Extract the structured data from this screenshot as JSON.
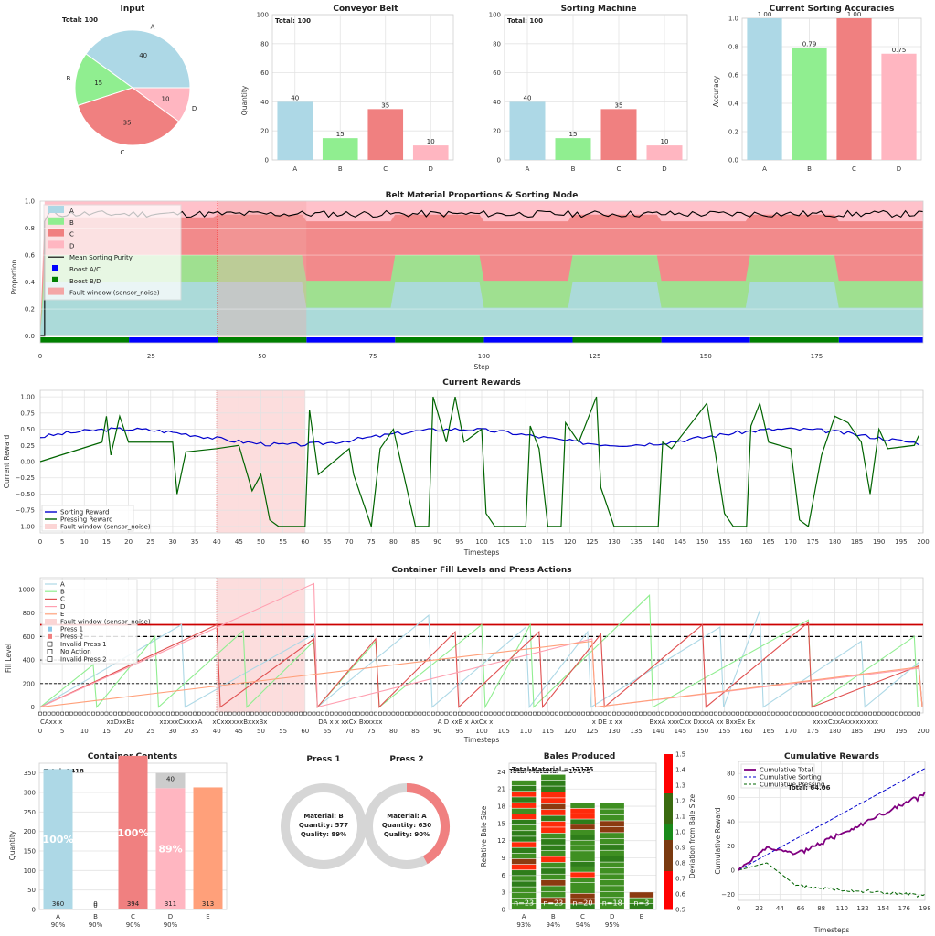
{
  "colors": {
    "A": "#add8e6",
    "B": "#90ee90",
    "C": "#f08080",
    "D": "#ffb6c1",
    "E": "#ffa07a",
    "purity": "#000000",
    "boostAC": "#0000ff",
    "boostBD": "#008000",
    "fault": "#f4a6a6",
    "sorting": "#0000cd",
    "pressing": "#006400"
  },
  "input": {
    "title": "Input",
    "total_label": "Total: 100",
    "slices": [
      {
        "name": "A",
        "value": 40
      },
      {
        "name": "B",
        "value": 15
      },
      {
        "name": "C",
        "value": 35
      },
      {
        "name": "D",
        "value": 10
      }
    ]
  },
  "conveyor": {
    "title": "Conveyor Belt",
    "total_label": "Total: 100",
    "ylabel": "Quantity",
    "categories": [
      "A",
      "B",
      "C",
      "D"
    ],
    "values": [
      40,
      15,
      35,
      10
    ],
    "ylim": [
      0,
      100
    ],
    "yticks": [
      0,
      20,
      40,
      60,
      80,
      100
    ]
  },
  "sorter": {
    "title": "Sorting Machine",
    "total_label": "Total: 100",
    "categories": [
      "A",
      "B",
      "C",
      "D"
    ],
    "values": [
      40,
      15,
      35,
      10
    ],
    "ylim": [
      0,
      100
    ],
    "yticks": [
      0,
      20,
      40,
      60,
      80,
      100
    ]
  },
  "accuracy": {
    "title": "Current Sorting Accuracies",
    "ylabel": "Accuracy",
    "categories": [
      "A",
      "B",
      "C",
      "D"
    ],
    "values": [
      1.0,
      0.79,
      1.0,
      0.75
    ],
    "value_labels": [
      "1.00",
      "0.79",
      "1.00",
      "0.75"
    ],
    "ylim": [
      0,
      1
    ],
    "yticks": [
      "0.0",
      "0.2",
      "0.4",
      "0.6",
      "0.8",
      "1.0"
    ]
  },
  "chart_data": [
    {
      "type": "pie",
      "title": "Input",
      "categories": [
        "A",
        "B",
        "C",
        "D"
      ],
      "values": [
        40,
        15,
        35,
        10
      ]
    },
    {
      "type": "bar",
      "title": "Conveyor Belt",
      "categories": [
        "A",
        "B",
        "C",
        "D"
      ],
      "values": [
        40,
        15,
        35,
        10
      ],
      "ylabel": "Quantity",
      "ylim": [
        0,
        100
      ]
    },
    {
      "type": "bar",
      "title": "Sorting Machine",
      "categories": [
        "A",
        "B",
        "C",
        "D"
      ],
      "values": [
        40,
        15,
        35,
        10
      ],
      "ylim": [
        0,
        100
      ]
    },
    {
      "type": "bar",
      "title": "Current Sorting Accuracies",
      "categories": [
        "A",
        "B",
        "C",
        "D"
      ],
      "values": [
        1.0,
        0.79,
        1.0,
        0.75
      ],
      "ylabel": "Accuracy",
      "ylim": [
        0,
        1
      ]
    },
    {
      "type": "area",
      "title": "Belt Material Proportions & Sorting Mode",
      "xlabel": "Step",
      "ylabel": "Proportion",
      "xlim": [
        0,
        199
      ],
      "ylim": [
        0,
        1
      ],
      "series": [
        {
          "name": "A",
          "values_low_high": [
            0.21,
            0.4
          ]
        },
        {
          "name": "B",
          "values_low_high": [
            0.15,
            0.2
          ]
        },
        {
          "name": "C",
          "values_low_high": [
            0.28,
            0.35
          ]
        },
        {
          "name": "D",
          "values_low_high": [
            0.1,
            0.15
          ]
        },
        {
          "name": "Mean Sorting Purity",
          "approx": 0.9
        }
      ],
      "boost_AC_steps": [
        [
          20,
          40
        ],
        [
          60,
          80
        ],
        [
          100,
          120
        ],
        [
          140,
          160
        ],
        [
          180,
          199
        ]
      ],
      "boost_BD_steps": [
        [
          0,
          20
        ],
        [
          40,
          60
        ],
        [
          80,
          100
        ],
        [
          120,
          140
        ],
        [
          160,
          180
        ]
      ],
      "fault_window": [
        40,
        60
      ]
    },
    {
      "type": "line",
      "title": "Current Rewards",
      "xlabel": "Timesteps",
      "ylabel": "Current Reward",
      "ylim": [
        -1.1,
        1.1
      ],
      "series": [
        "Sorting Reward",
        "Pressing Reward"
      ],
      "fault_window": [
        40,
        60
      ]
    },
    {
      "type": "line",
      "title": "Container Fill Levels and Press Actions",
      "xlabel": "Timesteps",
      "ylabel": "Fill Level",
      "series": [
        "A",
        "B",
        "C",
        "D",
        "E"
      ],
      "thresholds": [
        700,
        600,
        400,
        200
      ]
    },
    {
      "type": "bar",
      "title": "Container Contents",
      "total_label": "Total: 1418",
      "categories": [
        "A",
        "B",
        "C",
        "D",
        "E"
      ],
      "values": [
        360,
        0,
        394,
        311,
        313
      ],
      "fill_pct": [
        "100%",
        "",
        "100%",
        "89%",
        ""
      ],
      "accuracy": [
        "90%",
        "90%",
        "90%",
        "90%",
        ""
      ]
    },
    {
      "type": "bar",
      "title": "Bales Produced",
      "total_label": "Total Material = 17175",
      "categories": [
        "A",
        "B",
        "C",
        "D",
        "E"
      ],
      "bale_counts": [
        23,
        23,
        20,
        18,
        3
      ],
      "quality": [
        "93%",
        "94%",
        "94%",
        "95%",
        ""
      ]
    },
    {
      "type": "line",
      "title": "Cumulative Rewards",
      "xlabel": "Timesteps",
      "ylabel": "Cumulative Reward",
      "series": [
        "Cumulative Total",
        "Cumulative Sorting",
        "Cumulative Pressing"
      ],
      "final_total": 64.06
    }
  ],
  "belt": {
    "title": "Belt Material Proportions & Sorting Mode",
    "xlabel": "Step",
    "ylabel": "Proportion",
    "yticks": [
      "0.0",
      "0.2",
      "0.4",
      "0.6",
      "0.8",
      "1.0"
    ],
    "xticks": [
      "0",
      "25",
      "50",
      "75",
      "100",
      "125",
      "150",
      "175"
    ],
    "legend": [
      "A",
      "B",
      "C",
      "D",
      "Mean Sorting Purity",
      "Boost A/C",
      "Boost B/D",
      "Fault window (sensor_noise)"
    ]
  },
  "rewards": {
    "title": "Current Rewards",
    "xlabel": "Timesteps",
    "ylabel": "Current Reward",
    "yticks": [
      "1.00",
      "0.75",
      "0.50",
      "0.25",
      "0.00",
      "−0.25",
      "−0.50",
      "−0.75",
      "−1.00"
    ],
    "legend": [
      "Sorting Reward",
      "Pressing Reward",
      "Fault window (sensor_noise)"
    ]
  },
  "fill": {
    "title": "Container Fill Levels and Press Actions",
    "xlabel": "Timesteps",
    "ylabel": "Fill Level",
    "yticks": [
      "0",
      "200",
      "400",
      "600",
      "800",
      "1000"
    ],
    "legend": [
      "A",
      "B",
      "C",
      "D",
      "E",
      "Fault window (sensor_noise)",
      "Press 1",
      "Press 2",
      "Invalid Press 1",
      "No Action",
      "Invalid Press 2"
    ]
  },
  "contents": {
    "title": "Container Contents",
    "total_label": "Total: 1418",
    "ylabel": "Quantity",
    "yticks": [
      "0",
      "50",
      "100",
      "150",
      "200",
      "250",
      "300",
      "350"
    ],
    "categories": [
      "A",
      "B",
      "C",
      "D",
      "E"
    ],
    "values": [
      360,
      0,
      394,
      311,
      313
    ],
    "top_labels": [
      "",
      "0",
      "",
      "40",
      ""
    ],
    "pct": [
      "100%",
      "",
      "100%",
      "89%",
      ""
    ],
    "acc": [
      "90%",
      "90%",
      "90%",
      "90%",
      ""
    ]
  },
  "presses": [
    {
      "title": "Press 1",
      "material": "Material: B",
      "quantity": "Quantity: 577",
      "quality": "Quality: 89%",
      "fill": 0.0
    },
    {
      "title": "Press 2",
      "material": "Material: A",
      "quantity": "Quantity: 630",
      "quality": "Quality: 90%",
      "fill": 0.42
    }
  ],
  "bales": {
    "title": "Bales Produced",
    "total_label": "Total Material = 17175",
    "ylabel": "Relative Bale Size",
    "yticks": [
      "0",
      "3",
      "6",
      "9",
      "12",
      "15",
      "18",
      "21",
      "24"
    ],
    "categories": [
      "A",
      "B",
      "C",
      "D",
      "E"
    ],
    "quality": [
      "93%",
      "94%",
      "94%",
      "95%",
      ""
    ],
    "counts": [
      "n=23",
      "n=23",
      "n=20",
      "n=18",
      "n=3"
    ],
    "cbar_label": "Deviation from Bale Size",
    "cbar_ticks": [
      "0.5",
      "0.6",
      "0.7",
      "0.8",
      "0.9",
      "1.0",
      "1.1",
      "1.2",
      "1.3",
      "1.4",
      "1.5"
    ]
  },
  "cumulative": {
    "title": "Cumulative Rewards",
    "xlabel": "Timesteps",
    "ylabel": "Cumulative Reward",
    "yticks": [
      "−20",
      "0",
      "20",
      "40",
      "60",
      "80"
    ],
    "xticks": [
      "0",
      "22",
      "44",
      "66",
      "88",
      "110",
      "132",
      "154",
      "176",
      "198"
    ],
    "legend": [
      "Cumulative Total",
      "Cumulative Sorting",
      "Cumulative Pressing"
    ],
    "overlay": "Total: 64.06"
  }
}
